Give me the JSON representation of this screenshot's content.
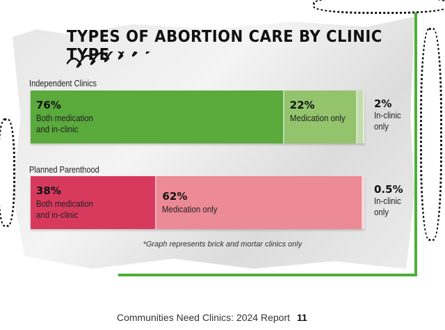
{
  "chart_data": {
    "type": "bar",
    "orientation": "horizontal-stacked",
    "title": "TYPES OF ABORTION CARE BY CLINIC TYPE",
    "note": "*Graph represents brick and mortar clinics only",
    "unit": "%",
    "groups": [
      {
        "name": "Independent Clinics",
        "segments": [
          {
            "label": "Both medication and in-clinic",
            "value": 76,
            "display": "76%",
            "color": "#5aaa3c"
          },
          {
            "label": "Medication only",
            "value": 22,
            "display": "22%",
            "color": "#93c46c"
          },
          {
            "label": "In-clinic only",
            "value": 2,
            "display": "2%",
            "color": "#c4dcae"
          }
        ]
      },
      {
        "name": "Planned Parenthood",
        "segments": [
          {
            "label": "Both medication and in-clinic",
            "value": 38,
            "display": "38%",
            "color": "#d83a5e"
          },
          {
            "label": "Medication only",
            "value": 62,
            "display": "62%",
            "color": "#ec8a95"
          },
          {
            "label": "In-clinic only",
            "value": 0.5,
            "display": "0.5%",
            "color": "#f0b0b6"
          }
        ]
      }
    ]
  },
  "footer": {
    "text": "Communities Need Clinics: 2024 Report",
    "page": "11"
  }
}
